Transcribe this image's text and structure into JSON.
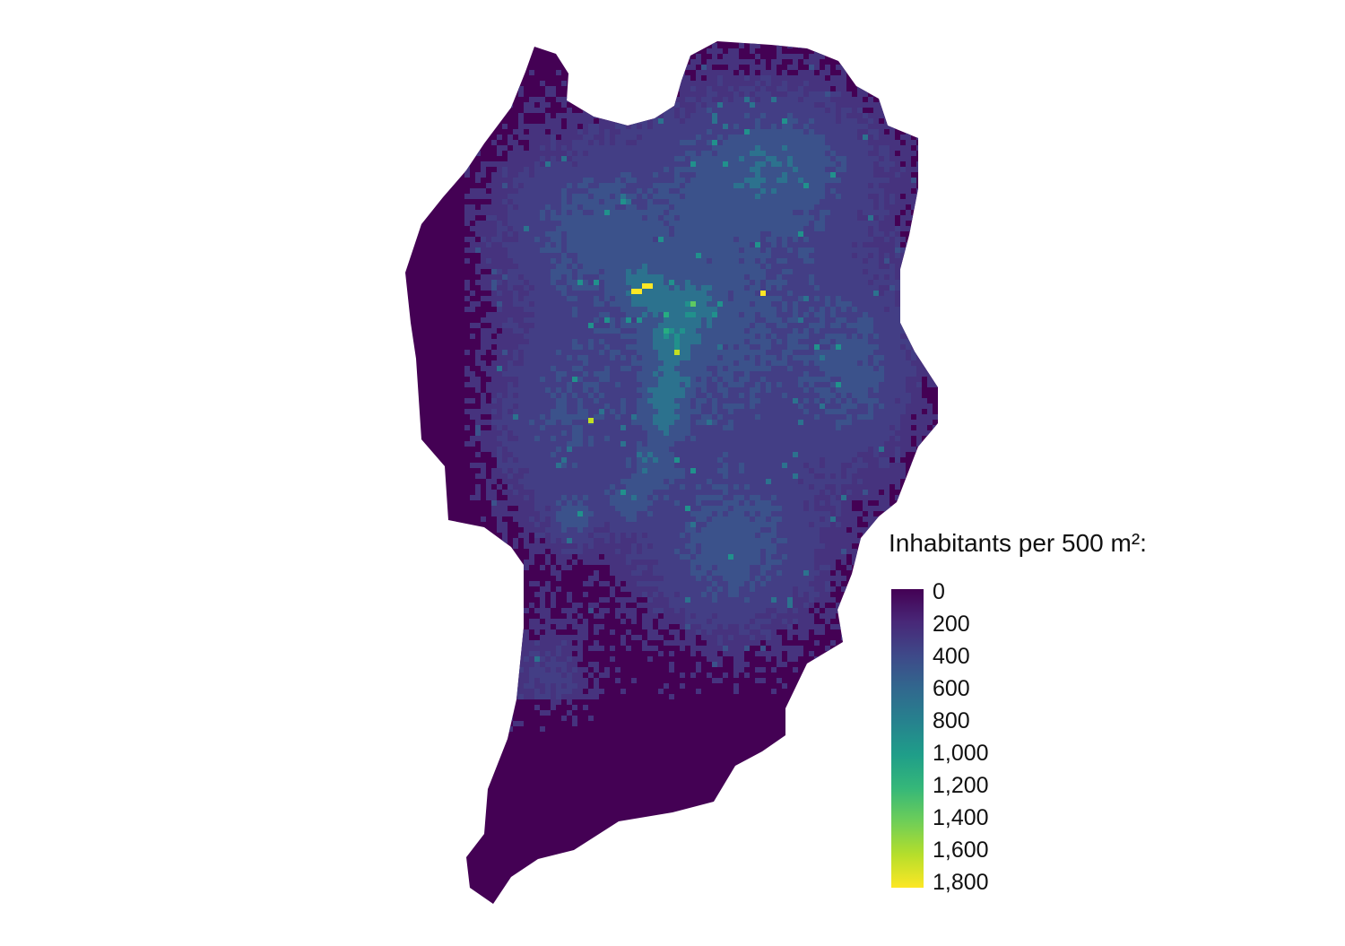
{
  "legend": {
    "title": "Inhabitants per 500 m²:",
    "ticks": [
      "0",
      "200",
      "400",
      "600",
      "800",
      "1,000",
      "1,200",
      "1,400",
      "1,600",
      "1,800"
    ],
    "range": [
      0,
      1850
    ]
  },
  "colormap": {
    "name": "viridis",
    "stops": [
      "#440154",
      "#482878",
      "#3e4989",
      "#31688e",
      "#26828e",
      "#1f9e89",
      "#35b779",
      "#6ece58",
      "#b5de2b",
      "#fde725"
    ]
  },
  "map": {
    "background_color": "#440154",
    "fill_colors": [
      "#46337e",
      "#433e85",
      "#3b528b",
      "#2c728e",
      "#21918c",
      "#27ad81",
      "#5ec962",
      "#c2df23",
      "#fde725"
    ]
  }
}
